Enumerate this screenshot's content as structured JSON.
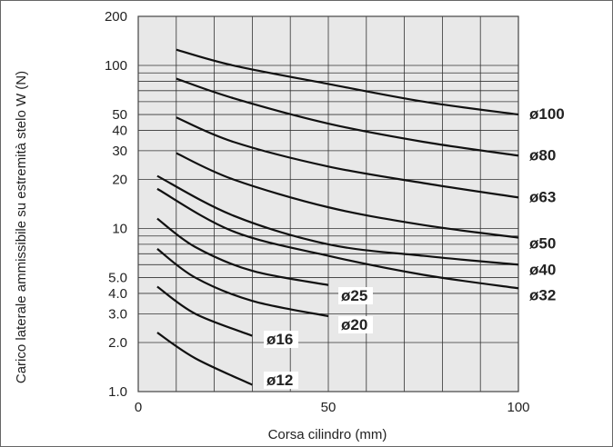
{
  "chart_data": {
    "type": "line",
    "title": "",
    "xlabel": "Corsa cilindro (mm)",
    "ylabel": "Carico laterale ammissibile su estremità stelo W (N)",
    "xlim": [
      0,
      100
    ],
    "ylim": [
      1.0,
      200
    ],
    "yscale": "log",
    "grid": true,
    "plot_background": "#e8e8e8",
    "line_color": "#111111",
    "x_ticks": [
      "0",
      "50",
      "100"
    ],
    "y_ticks": [
      {
        "value": 1.0,
        "label": "1.0"
      },
      {
        "value": 2.0,
        "label": "2.0"
      },
      {
        "value": 3.0,
        "label": "3.0"
      },
      {
        "value": 4.0,
        "label": "4.0"
      },
      {
        "value": 5.0,
        "label": "5.0"
      },
      {
        "value": 10,
        "label": "10"
      },
      {
        "value": 20,
        "label": "20"
      },
      {
        "value": 30,
        "label": "30"
      },
      {
        "value": 40,
        "label": "40"
      },
      {
        "value": 50,
        "label": "50"
      },
      {
        "value": 100,
        "label": "100"
      },
      {
        "value": 200,
        "label": "200"
      }
    ],
    "series": [
      {
        "name": "ø100",
        "x": [
          10,
          25,
          50,
          75,
          100
        ],
        "y": [
          125,
          100,
          77,
          60,
          50
        ]
      },
      {
        "name": "ø80",
        "x": [
          10,
          25,
          50,
          75,
          100
        ],
        "y": [
          83,
          63,
          44,
          34,
          28
        ]
      },
      {
        "name": "ø63",
        "x": [
          10,
          25,
          50,
          75,
          100
        ],
        "y": [
          48,
          34,
          24,
          19,
          15.5
        ]
      },
      {
        "name": "ø50",
        "x": [
          10,
          25,
          50,
          75,
          100
        ],
        "y": [
          29,
          20,
          13.5,
          10.5,
          8.8
        ]
      },
      {
        "name": "ø40",
        "x": [
          5,
          25,
          50,
          75,
          100
        ],
        "y": [
          21,
          12,
          8.0,
          6.8,
          6.0
        ]
      },
      {
        "name": "ø32",
        "x": [
          5,
          25,
          50,
          75,
          100
        ],
        "y": [
          17.5,
          9.6,
          6.8,
          5.2,
          4.3
        ]
      },
      {
        "name": "ø25",
        "x": [
          5,
          15,
          30,
          50
        ],
        "y": [
          11.5,
          7.7,
          5.5,
          4.5
        ]
      },
      {
        "name": "ø20",
        "x": [
          5,
          15,
          30,
          50
        ],
        "y": [
          7.5,
          5.0,
          3.6,
          2.9
        ]
      },
      {
        "name": "ø16",
        "x": [
          5,
          15,
          30
        ],
        "y": [
          4.4,
          3.0,
          2.2
        ]
      },
      {
        "name": "ø12",
        "x": [
          5,
          15,
          30
        ],
        "y": [
          2.3,
          1.6,
          1.1
        ]
      }
    ]
  }
}
